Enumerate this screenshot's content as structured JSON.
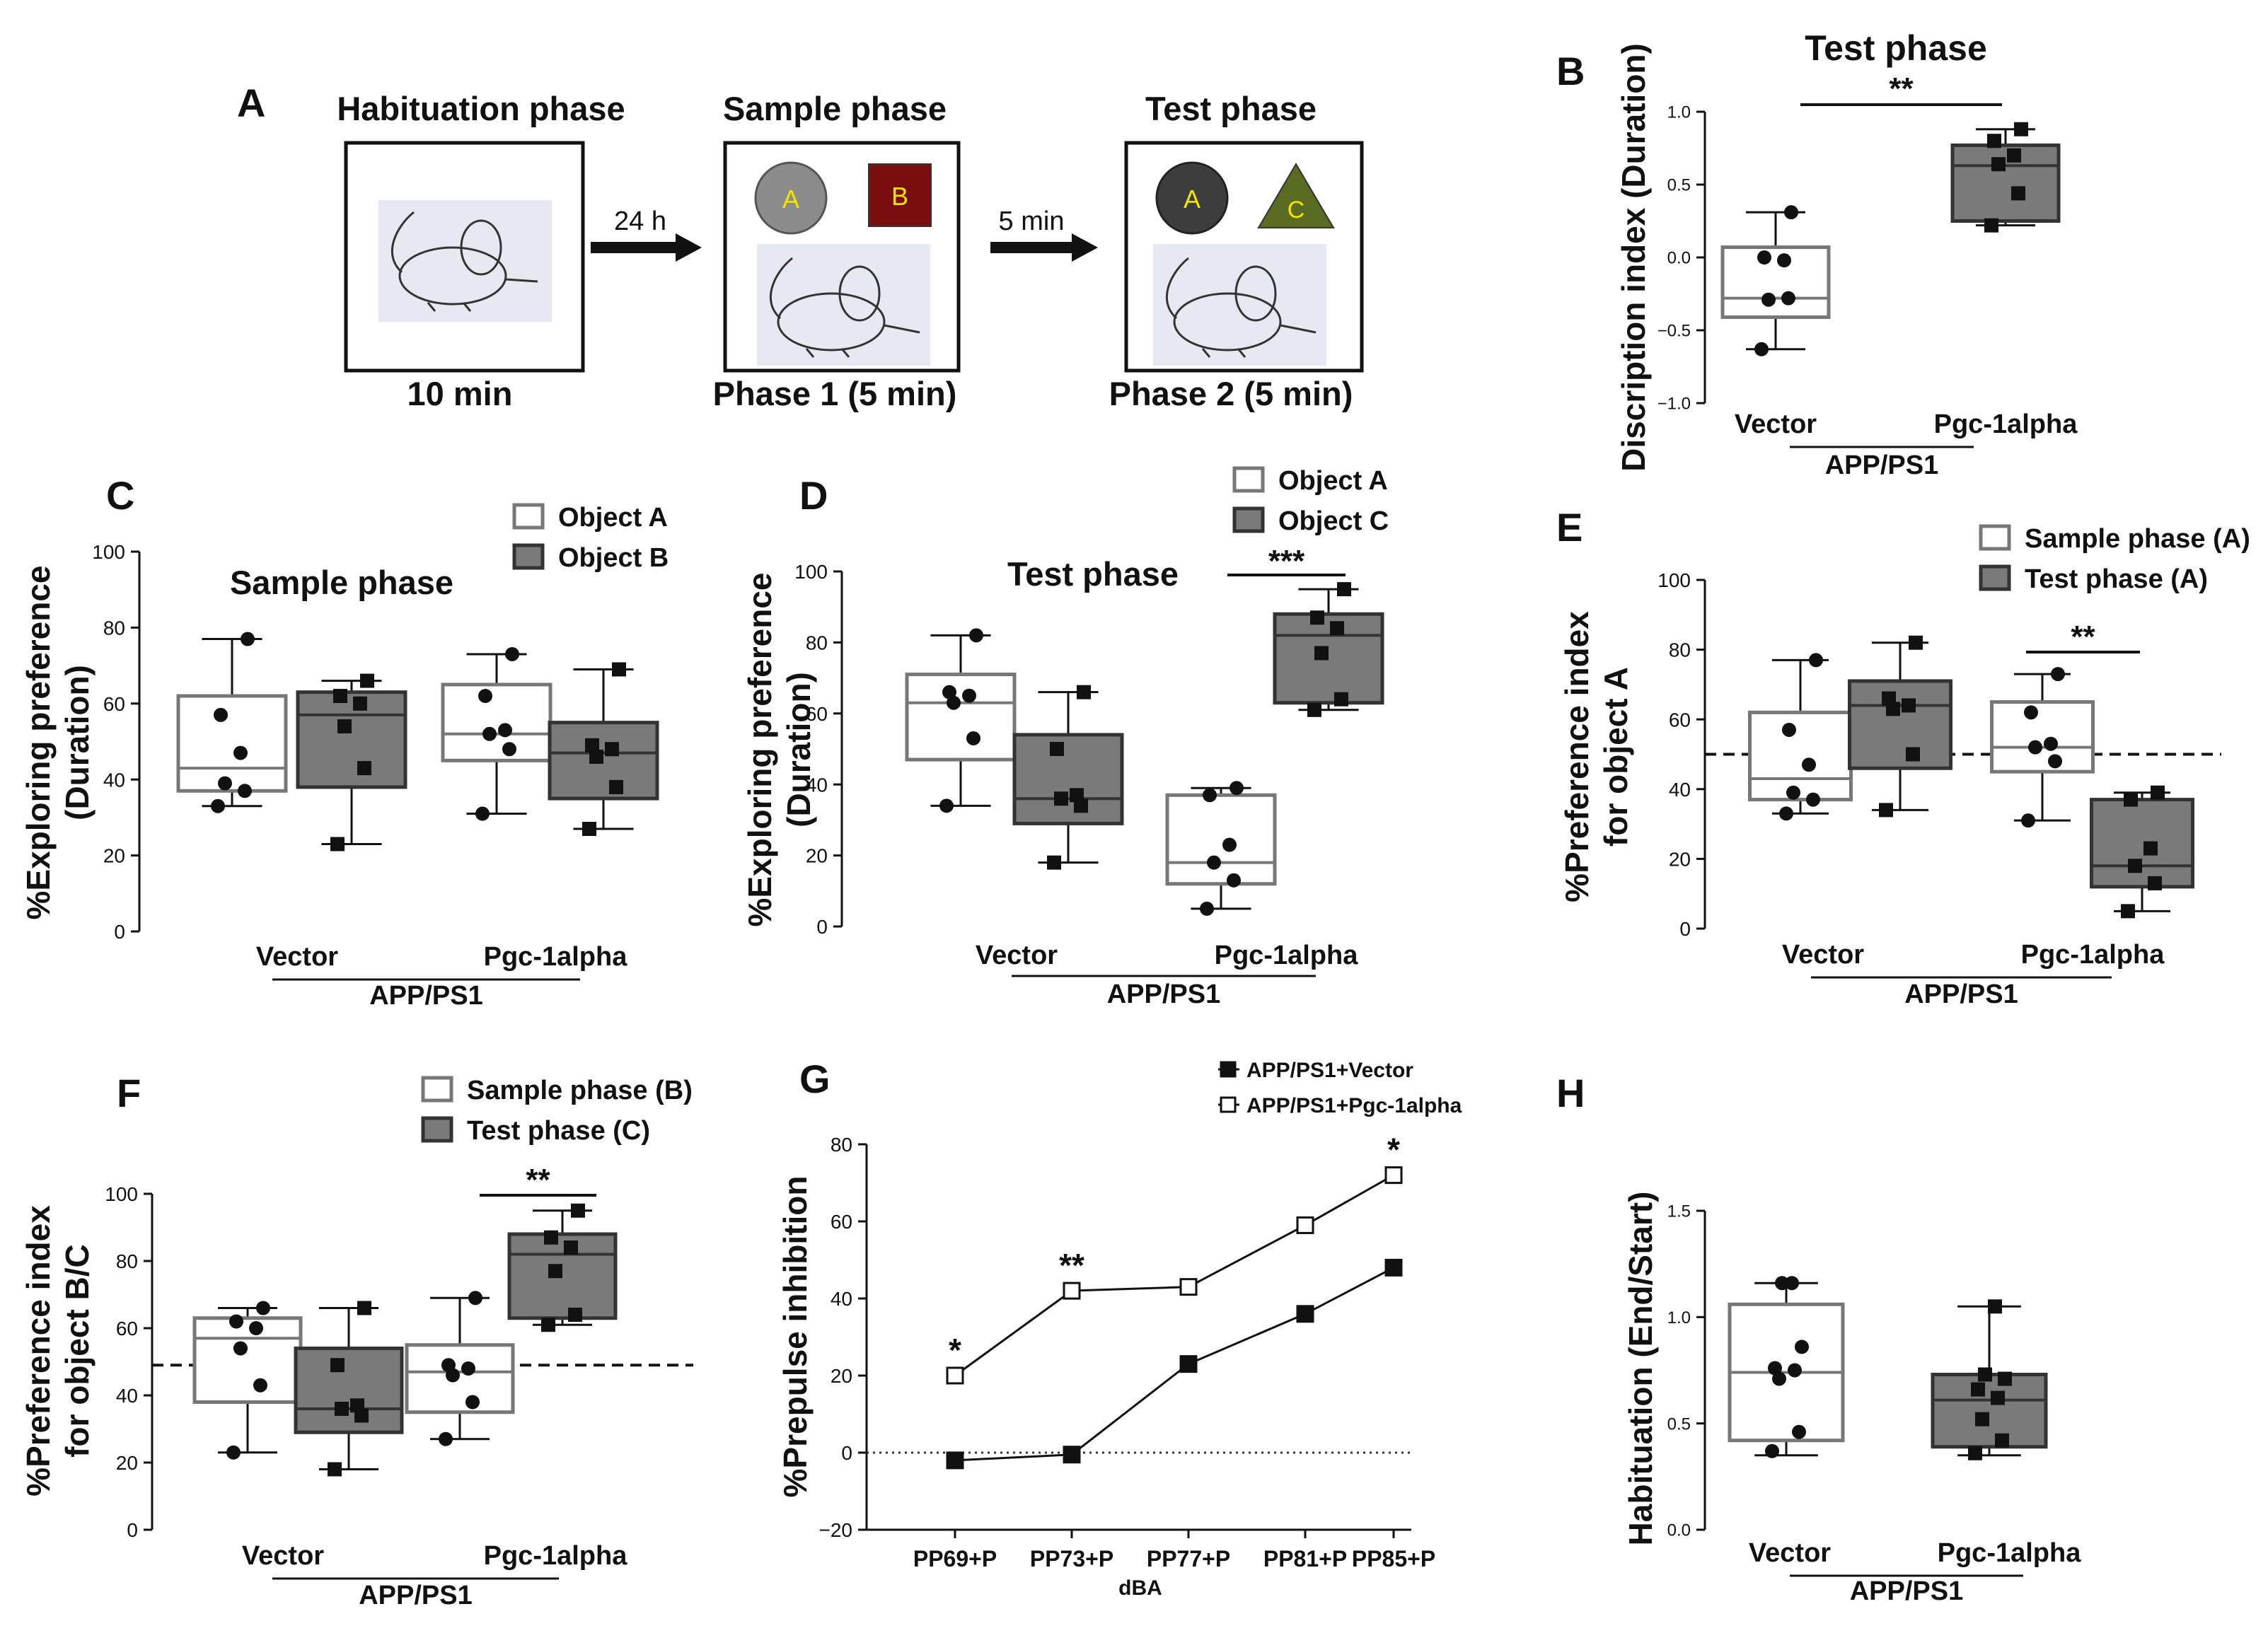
{
  "panels": {
    "A": {
      "letter": "A",
      "habituation": {
        "title": "Habituation phase",
        "duration": "10 min"
      },
      "arrow1": "24 h",
      "sample": {
        "title": "Sample phase",
        "duration": "Phase 1 (5 min)",
        "object1": "A",
        "object2": "B"
      },
      "arrow2": "5 min",
      "test": {
        "title": "Test phase",
        "duration": "Phase 2 (5 min)",
        "object1": "A",
        "object2": "C"
      }
    },
    "B": {
      "letter": "B"
    },
    "C": {
      "letter": "C"
    },
    "D": {
      "letter": "D"
    },
    "E": {
      "letter": "E"
    },
    "F": {
      "letter": "F"
    },
    "G": {
      "letter": "G"
    },
    "H": {
      "letter": "H"
    }
  },
  "colors": {
    "white_box": "#ffffff",
    "grey_box": "#7a7a7a",
    "dark_point": "#111111",
    "objectA": "#8c8c8c",
    "objectA_dark": "#3d3d3d",
    "objectB": "#7a0d0d",
    "objectC": "#5a6b22",
    "object_label": "#f2e600"
  },
  "chart_data": [
    {
      "id": "B",
      "type": "box",
      "title": "Test phase",
      "ylabel": "Discription index (Duration)",
      "ylim": [
        -1.0,
        1.0
      ],
      "yticks": [
        "−1.0",
        "−0.5",
        "0.0",
        "0.5",
        "1.0"
      ],
      "groups": [
        "Vector",
        "Pgc-1alpha"
      ],
      "group_label": "APP/PS1",
      "series": [
        {
          "fill": "white",
          "marker": "circle",
          "group": 0,
          "min": -0.63,
          "q1": -0.41,
          "median": -0.28,
          "q3": 0.07,
          "max": 0.31,
          "points": [
            -0.63,
            -0.28,
            -0.29,
            -0.02,
            0.0,
            0.31
          ]
        },
        {
          "fill": "grey",
          "marker": "square",
          "group": 1,
          "min": 0.22,
          "q1": 0.25,
          "median": 0.63,
          "q3": 0.77,
          "max": 0.88,
          "points": [
            0.22,
            0.44,
            0.64,
            0.7,
            0.8,
            0.88
          ]
        }
      ],
      "significance": [
        {
          "label": "**"
        }
      ]
    },
    {
      "id": "C",
      "type": "box",
      "title": "Sample phase",
      "ylabel": "%Exploring preference (Duration)",
      "ylim": [
        0,
        100
      ],
      "yticks": [
        "0",
        "20",
        "40",
        "60",
        "80",
        "100"
      ],
      "groups": [
        "Vector",
        "Pgc-1alpha"
      ],
      "group_label": "APP/PS1",
      "legend": [
        "Object A",
        "Object B"
      ],
      "series": [
        {
          "fill": "white",
          "marker": "circle",
          "group": 0,
          "min": 33,
          "q1": 37,
          "median": 43,
          "q3": 62,
          "max": 77,
          "points": [
            33,
            37,
            39,
            47,
            57,
            77
          ]
        },
        {
          "fill": "grey",
          "marker": "square",
          "group": 0,
          "min": 23,
          "q1": 38,
          "median": 57,
          "q3": 63,
          "max": 66,
          "points": [
            23,
            43,
            54,
            60,
            62,
            66
          ]
        },
        {
          "fill": "white",
          "marker": "circle",
          "group": 1,
          "min": 31,
          "q1": 45,
          "median": 52,
          "q3": 65,
          "max": 73,
          "points": [
            31,
            48,
            52,
            53,
            62,
            73
          ]
        },
        {
          "fill": "grey",
          "marker": "square",
          "group": 1,
          "min": 27,
          "q1": 35,
          "median": 47,
          "q3": 55,
          "max": 69,
          "points": [
            27,
            38,
            46,
            48,
            49,
            69
          ]
        }
      ]
    },
    {
      "id": "D",
      "type": "box",
      "title": "Test phase",
      "ylabel": "%Exploring preference (Duration)",
      "ylim": [
        0,
        100
      ],
      "yticks": [
        "0",
        "20",
        "40",
        "60",
        "80",
        "100"
      ],
      "groups": [
        "Vector",
        "Pgc-1alpha"
      ],
      "group_label": "APP/PS1",
      "legend": [
        "Object A",
        "Object C"
      ],
      "series": [
        {
          "fill": "white",
          "marker": "circle",
          "group": 0,
          "min": 34,
          "q1": 47,
          "median": 63,
          "q3": 71,
          "max": 82,
          "points": [
            34,
            53,
            63,
            65,
            66,
            82
          ]
        },
        {
          "fill": "grey",
          "marker": "square",
          "group": 0,
          "min": 18,
          "q1": 29,
          "median": 36,
          "q3": 54,
          "max": 66,
          "points": [
            18,
            34,
            36,
            37,
            50,
            66
          ]
        },
        {
          "fill": "white",
          "marker": "circle",
          "group": 1,
          "min": 5,
          "q1": 12,
          "median": 18,
          "q3": 37,
          "max": 39,
          "points": [
            5,
            13,
            18,
            23,
            37,
            39
          ]
        },
        {
          "fill": "grey",
          "marker": "square",
          "group": 1,
          "min": 61,
          "q1": 63,
          "median": 82,
          "q3": 88,
          "max": 95,
          "points": [
            61,
            64,
            77,
            84,
            87,
            95
          ]
        }
      ],
      "significance": [
        {
          "label": "***"
        }
      ]
    },
    {
      "id": "E",
      "type": "box",
      "ylabel": "%Preference index for object A",
      "ylim": [
        0,
        100
      ],
      "yticks": [
        "0",
        "20",
        "40",
        "60",
        "80",
        "100"
      ],
      "groups": [
        "Vector",
        "Pgc-1alpha"
      ],
      "group_label": "APP/PS1",
      "legend": [
        "Sample phase (A)",
        "Test phase (A)"
      ],
      "reference_line": 50,
      "series": [
        {
          "fill": "white",
          "marker": "circle",
          "group": 0,
          "min": 33,
          "q1": 37,
          "median": 43,
          "q3": 62,
          "max": 77,
          "points": [
            33,
            37,
            39,
            47,
            57,
            77
          ]
        },
        {
          "fill": "grey",
          "marker": "square",
          "group": 0,
          "min": 34,
          "q1": 46,
          "median": 64,
          "q3": 71,
          "max": 82,
          "points": [
            34,
            50,
            63,
            64,
            66,
            82
          ]
        },
        {
          "fill": "white",
          "marker": "circle",
          "group": 1,
          "min": 31,
          "q1": 45,
          "median": 52,
          "q3": 65,
          "max": 73,
          "points": [
            31,
            48,
            52,
            53,
            62,
            73
          ]
        },
        {
          "fill": "grey",
          "marker": "square",
          "group": 1,
          "min": 5,
          "q1": 12,
          "median": 18,
          "q3": 37,
          "max": 39,
          "points": [
            5,
            13,
            18,
            23,
            37,
            39
          ]
        }
      ],
      "significance": [
        {
          "label": "**"
        }
      ]
    },
    {
      "id": "F",
      "type": "box",
      "ylabel": "%Preference index for object B/C",
      "ylim": [
        0,
        100
      ],
      "yticks": [
        "0",
        "20",
        "40",
        "60",
        "80",
        "100"
      ],
      "groups": [
        "Vector",
        "Pgc-1alpha"
      ],
      "group_label": "APP/PS1",
      "legend": [
        "Sample phase (B)",
        "Test phase (C)"
      ],
      "reference_line": 49,
      "series": [
        {
          "fill": "white",
          "marker": "circle",
          "group": 0,
          "min": 23,
          "q1": 38,
          "median": 57,
          "q3": 63,
          "max": 66,
          "points": [
            23,
            43,
            54,
            60,
            62,
            66
          ]
        },
        {
          "fill": "grey",
          "marker": "square",
          "group": 0,
          "min": 18,
          "q1": 29,
          "median": 36,
          "q3": 54,
          "max": 66,
          "points": [
            18,
            34,
            36,
            37,
            49,
            66
          ]
        },
        {
          "fill": "white",
          "marker": "circle",
          "group": 1,
          "min": 27,
          "q1": 35,
          "median": 47,
          "q3": 55,
          "max": 69,
          "points": [
            27,
            38,
            46,
            48,
            49,
            69
          ]
        },
        {
          "fill": "grey",
          "marker": "square",
          "group": 1,
          "min": 61,
          "q1": 63,
          "median": 82,
          "q3": 88,
          "max": 95,
          "points": [
            61,
            64,
            77,
            84,
            87,
            95
          ]
        }
      ],
      "significance": [
        {
          "label": "**"
        }
      ]
    },
    {
      "id": "G",
      "type": "line",
      "ylabel": "%Prepulse inhibition",
      "xlabel": "dBA",
      "categories": [
        "PP69+P",
        "PP73+P",
        "PP77+P",
        "PP81+P",
        "PP85+P"
      ],
      "ylim": [
        -20,
        80
      ],
      "yticks": [
        "−20",
        "0",
        "20",
        "40",
        "60",
        "80"
      ],
      "series": [
        {
          "name": "APP/PS1+Vector",
          "marker": "filled-square",
          "values": [
            -2,
            -0.5,
            23,
            36,
            48
          ]
        },
        {
          "name": "APP/PS1+Pgc-1alpha",
          "marker": "open-square",
          "values": [
            20,
            42,
            43,
            59,
            72
          ]
        }
      ],
      "annotations": [
        "*",
        "**",
        "",
        "",
        "*"
      ]
    },
    {
      "id": "H",
      "type": "box",
      "ylabel": "Habituation (End/Start)",
      "ylim": [
        0.0,
        1.5
      ],
      "yticks": [
        "0.0",
        "0.5",
        "1.0",
        "1.5"
      ],
      "groups": [
        "Vector",
        "Pgc-1alpha"
      ],
      "group_label": "APP/PS1",
      "series": [
        {
          "fill": "white",
          "marker": "circle",
          "group": 0,
          "min": 0.35,
          "q1": 0.42,
          "median": 0.74,
          "q3": 1.06,
          "max": 1.16,
          "points": [
            0.37,
            0.46,
            0.71,
            0.75,
            0.76,
            0.86,
            1.16,
            1.16
          ]
        },
        {
          "fill": "grey",
          "marker": "square",
          "group": 1,
          "min": 0.35,
          "q1": 0.39,
          "median": 0.61,
          "q3": 0.73,
          "max": 1.05,
          "points": [
            0.36,
            0.42,
            0.52,
            0.62,
            0.66,
            0.71,
            0.73,
            1.05
          ]
        }
      ]
    }
  ]
}
